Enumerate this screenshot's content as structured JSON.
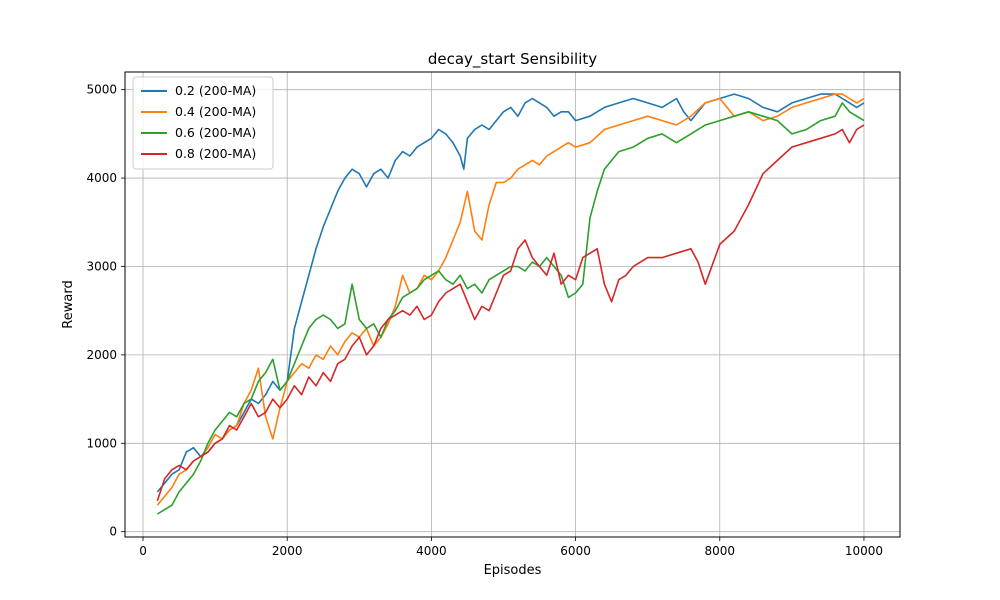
{
  "chart_data": {
    "type": "line",
    "title": "decay_start Sensibility",
    "xlabel": "Episodes",
    "ylabel": "Reward",
    "xlim": [
      -250,
      10500
    ],
    "ylim": [
      -60,
      5200
    ],
    "xticks": [
      0,
      2000,
      4000,
      6000,
      8000,
      10000
    ],
    "yticks": [
      0,
      1000,
      2000,
      3000,
      4000,
      5000
    ],
    "grid": true,
    "legend_position": "top-left",
    "series": [
      {
        "name": "0.2 (200-MA)",
        "color": "#1f77b4",
        "x": [
          200,
          300,
          400,
          500,
          600,
          700,
          800,
          900,
          1000,
          1100,
          1200,
          1300,
          1400,
          1500,
          1600,
          1700,
          1800,
          1900,
          2000,
          2050,
          2100,
          2200,
          2300,
          2400,
          2500,
          2600,
          2700,
          2800,
          2900,
          3000,
          3100,
          3200,
          3300,
          3400,
          3500,
          3600,
          3700,
          3800,
          3900,
          4000,
          4100,
          4200,
          4300,
          4400,
          4450,
          4500,
          4600,
          4700,
          4800,
          4900,
          5000,
          5100,
          5200,
          5300,
          5400,
          5500,
          5600,
          5700,
          5800,
          5900,
          6000,
          6200,
          6400,
          6600,
          6800,
          7000,
          7200,
          7400,
          7500,
          7600,
          7800,
          8000,
          8200,
          8400,
          8600,
          8800,
          9000,
          9200,
          9400,
          9600,
          9700,
          9800,
          9900,
          10000
        ],
        "values": [
          450,
          550,
          650,
          700,
          900,
          950,
          850,
          900,
          1000,
          1050,
          1150,
          1200,
          1350,
          1500,
          1450,
          1550,
          1700,
          1600,
          1700,
          2000,
          2300,
          2600,
          2900,
          3200,
          3450,
          3650,
          3850,
          4000,
          4100,
          4050,
          3900,
          4050,
          4100,
          4000,
          4200,
          4300,
          4250,
          4350,
          4400,
          4450,
          4550,
          4500,
          4400,
          4250,
          4100,
          4450,
          4550,
          4600,
          4550,
          4650,
          4750,
          4800,
          4700,
          4850,
          4900,
          4850,
          4800,
          4700,
          4750,
          4750,
          4650,
          4700,
          4800,
          4850,
          4900,
          4850,
          4800,
          4900,
          4750,
          4650,
          4850,
          4900,
          4950,
          4900,
          4800,
          4750,
          4850,
          4900,
          4950,
          4950,
          4900,
          4850,
          4800,
          4850
        ]
      },
      {
        "name": "0.4 (200-MA)",
        "color": "#ff7f0e",
        "x": [
          200,
          300,
          400,
          500,
          600,
          700,
          800,
          900,
          1000,
          1100,
          1200,
          1300,
          1400,
          1500,
          1600,
          1700,
          1800,
          1900,
          2000,
          2100,
          2200,
          2300,
          2400,
          2500,
          2600,
          2700,
          2800,
          2900,
          3000,
          3100,
          3200,
          3300,
          3400,
          3500,
          3600,
          3700,
          3800,
          3900,
          4000,
          4100,
          4200,
          4300,
          4400,
          4500,
          4600,
          4700,
          4800,
          4900,
          5000,
          5100,
          5200,
          5300,
          5400,
          5500,
          5600,
          5700,
          5800,
          5900,
          6000,
          6200,
          6400,
          6600,
          6800,
          7000,
          7200,
          7400,
          7600,
          7800,
          8000,
          8200,
          8400,
          8600,
          8800,
          9000,
          9200,
          9400,
          9600,
          9700,
          9800,
          9900,
          10000
        ],
        "values": [
          300,
          400,
          500,
          650,
          700,
          800,
          850,
          950,
          1100,
          1050,
          1150,
          1200,
          1450,
          1600,
          1850,
          1300,
          1050,
          1400,
          1700,
          1800,
          1900,
          1850,
          2000,
          1950,
          2100,
          2000,
          2150,
          2250,
          2200,
          2300,
          2100,
          2200,
          2350,
          2550,
          2900,
          2700,
          2750,
          2900,
          2850,
          2950,
          3100,
          3300,
          3500,
          3850,
          3400,
          3300,
          3700,
          3950,
          3950,
          4000,
          4100,
          4150,
          4200,
          4150,
          4250,
          4300,
          4350,
          4400,
          4350,
          4400,
          4550,
          4600,
          4650,
          4700,
          4650,
          4600,
          4700,
          4850,
          4900,
          4700,
          4750,
          4650,
          4700,
          4800,
          4850,
          4900,
          4950,
          4950,
          4900,
          4850,
          4900
        ]
      },
      {
        "name": "0.6 (200-MA)",
        "color": "#2ca02c",
        "x": [
          200,
          300,
          400,
          500,
          600,
          700,
          800,
          900,
          1000,
          1100,
          1200,
          1300,
          1400,
          1500,
          1600,
          1700,
          1800,
          1900,
          2000,
          2100,
          2200,
          2300,
          2400,
          2500,
          2600,
          2700,
          2800,
          2900,
          3000,
          3100,
          3200,
          3300,
          3400,
          3500,
          3600,
          3700,
          3800,
          3900,
          4000,
          4100,
          4200,
          4300,
          4400,
          4500,
          4600,
          4700,
          4800,
          4900,
          5000,
          5100,
          5200,
          5300,
          5400,
          5500,
          5600,
          5700,
          5800,
          5900,
          6000,
          6100,
          6200,
          6300,
          6400,
          6500,
          6600,
          6800,
          7000,
          7200,
          7400,
          7600,
          7800,
          8000,
          8200,
          8400,
          8600,
          8800,
          9000,
          9200,
          9400,
          9600,
          9700,
          9800,
          9900,
          10000
        ],
        "values": [
          200,
          250,
          300,
          450,
          550,
          650,
          800,
          1000,
          1150,
          1250,
          1350,
          1300,
          1450,
          1500,
          1700,
          1800,
          1950,
          1600,
          1700,
          1900,
          2100,
          2300,
          2400,
          2450,
          2400,
          2300,
          2350,
          2800,
          2400,
          2300,
          2350,
          2200,
          2400,
          2500,
          2650,
          2700,
          2750,
          2850,
          2900,
          2950,
          2850,
          2800,
          2900,
          2750,
          2800,
          2700,
          2850,
          2900,
          2950,
          3000,
          3000,
          2950,
          3050,
          3000,
          3100,
          3000,
          2900,
          2650,
          2700,
          2800,
          3550,
          3850,
          4100,
          4200,
          4300,
          4350,
          4450,
          4500,
          4400,
          4500,
          4600,
          4650,
          4700,
          4750,
          4700,
          4650,
          4500,
          4550,
          4650,
          4700,
          4850,
          4750,
          4700,
          4650
        ]
      },
      {
        "name": "0.8 (200-MA)",
        "color": "#d62728",
        "x": [
          200,
          300,
          400,
          500,
          600,
          700,
          800,
          900,
          1000,
          1100,
          1200,
          1300,
          1400,
          1500,
          1600,
          1700,
          1800,
          1900,
          2000,
          2100,
          2200,
          2300,
          2400,
          2500,
          2600,
          2700,
          2800,
          2900,
          3000,
          3100,
          3200,
          3300,
          3400,
          3500,
          3600,
          3700,
          3800,
          3900,
          4000,
          4100,
          4200,
          4300,
          4400,
          4500,
          4600,
          4700,
          4800,
          4900,
          5000,
          5100,
          5200,
          5300,
          5400,
          5500,
          5600,
          5700,
          5800,
          5900,
          6000,
          6100,
          6200,
          6300,
          6400,
          6500,
          6600,
          6700,
          6800,
          7000,
          7200,
          7400,
          7600,
          7700,
          7800,
          8000,
          8200,
          8400,
          8600,
          8800,
          9000,
          9200,
          9400,
          9600,
          9700,
          9800,
          9900,
          10000
        ],
        "values": [
          350,
          600,
          700,
          750,
          700,
          800,
          850,
          900,
          1000,
          1050,
          1200,
          1150,
          1300,
          1450,
          1300,
          1350,
          1500,
          1400,
          1500,
          1650,
          1550,
          1750,
          1650,
          1800,
          1700,
          1900,
          1950,
          2100,
          2200,
          2000,
          2100,
          2300,
          2400,
          2450,
          2500,
          2450,
          2550,
          2400,
          2450,
          2600,
          2700,
          2750,
          2800,
          2600,
          2400,
          2550,
          2500,
          2700,
          2900,
          2950,
          3200,
          3300,
          3100,
          3000,
          2900,
          3150,
          2800,
          2900,
          2850,
          3100,
          3150,
          3200,
          2800,
          2600,
          2850,
          2900,
          3000,
          3100,
          3100,
          3150,
          3200,
          3050,
          2800,
          3250,
          3400,
          3700,
          4050,
          4200,
          4350,
          4400,
          4450,
          4500,
          4550,
          4400,
          4550,
          4600
        ]
      }
    ]
  }
}
